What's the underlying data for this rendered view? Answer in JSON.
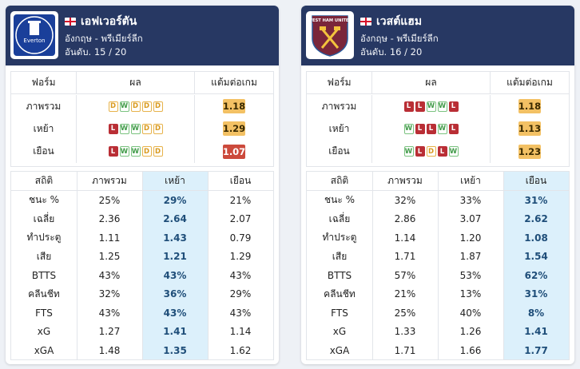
{
  "teams": [
    {
      "name": "เอฟเวอร์ตัน",
      "country_league": "อังกฤษ - พรีเมียร์ลีก",
      "rank": "อันดับ. 15 / 20",
      "logo_icon": "everton-crest-icon",
      "logo_text": "Everton",
      "form_header": {
        "form": "ฟอร์ม",
        "results": "ผล",
        "ppg": "แต้มต่อเกม"
      },
      "form_rows": [
        {
          "label": "ภาพรวม",
          "results": [
            "D",
            "W",
            "D",
            "D",
            "D"
          ],
          "ppg": "1.18",
          "ppg_color": "#f3c164"
        },
        {
          "label": "เหย้า",
          "results": [
            "L",
            "W",
            "W",
            "D",
            "D"
          ],
          "ppg": "1.29",
          "ppg_color": "#f3c164"
        },
        {
          "label": "เยือน",
          "results": [
            "L",
            "W",
            "W",
            "D",
            "D"
          ],
          "ppg": "1.07",
          "ppg_color": "#cc4a3c"
        }
      ],
      "stats_header": [
        "สถิติ",
        "ภาพรวม",
        "เหย้า",
        "เยือน"
      ],
      "highlight_col": 2,
      "stats": [
        [
          "ชนะ %",
          "25%",
          "29%",
          "21%"
        ],
        [
          "เฉลี่ย",
          "2.36",
          "2.64",
          "2.07"
        ],
        [
          "ทำประตู",
          "1.11",
          "1.43",
          "0.79"
        ],
        [
          "เสีย",
          "1.25",
          "1.21",
          "1.29"
        ],
        [
          "BTTS",
          "43%",
          "43%",
          "43%"
        ],
        [
          "คลีนชีท",
          "32%",
          "36%",
          "29%"
        ],
        [
          "FTS",
          "43%",
          "43%",
          "43%"
        ],
        [
          "xG",
          "1.27",
          "1.41",
          "1.14"
        ],
        [
          "xGA",
          "1.48",
          "1.35",
          "1.62"
        ]
      ]
    },
    {
      "name": "เวสต์แฮม",
      "country_league": "อังกฤษ - พรีเมียร์ลีก",
      "rank": "อันดับ. 16 / 20",
      "logo_icon": "west-ham-crest-icon",
      "logo_text": "WEST HAM UNITED",
      "form_header": {
        "form": "ฟอร์ม",
        "results": "ผล",
        "ppg": "แต้มต่อเกม"
      },
      "form_rows": [
        {
          "label": "ภาพรวม",
          "results": [
            "L",
            "L",
            "W",
            "W",
            "L"
          ],
          "ppg": "1.18",
          "ppg_color": "#f3c164"
        },
        {
          "label": "เหย้า",
          "results": [
            "W",
            "L",
            "L",
            "W",
            "L"
          ],
          "ppg": "1.13",
          "ppg_color": "#f3c164"
        },
        {
          "label": "เยือน",
          "results": [
            "W",
            "L",
            "D",
            "L",
            "W"
          ],
          "ppg": "1.23",
          "ppg_color": "#f3c164"
        }
      ],
      "stats_header": [
        "สถิติ",
        "ภาพรวม",
        "เหย้า",
        "เยือน"
      ],
      "highlight_col": 3,
      "stats": [
        [
          "ชนะ %",
          "32%",
          "33%",
          "31%"
        ],
        [
          "เฉลี่ย",
          "2.86",
          "3.07",
          "2.62"
        ],
        [
          "ทำประตู",
          "1.14",
          "1.20",
          "1.08"
        ],
        [
          "เสีย",
          "1.71",
          "1.87",
          "1.54"
        ],
        [
          "BTTS",
          "57%",
          "53%",
          "62%"
        ],
        [
          "คลีนชีท",
          "21%",
          "13%",
          "31%"
        ],
        [
          "FTS",
          "25%",
          "40%",
          "8%"
        ],
        [
          "xG",
          "1.33",
          "1.26",
          "1.41"
        ],
        [
          "xGA",
          "1.71",
          "1.66",
          "1.77"
        ]
      ]
    }
  ]
}
